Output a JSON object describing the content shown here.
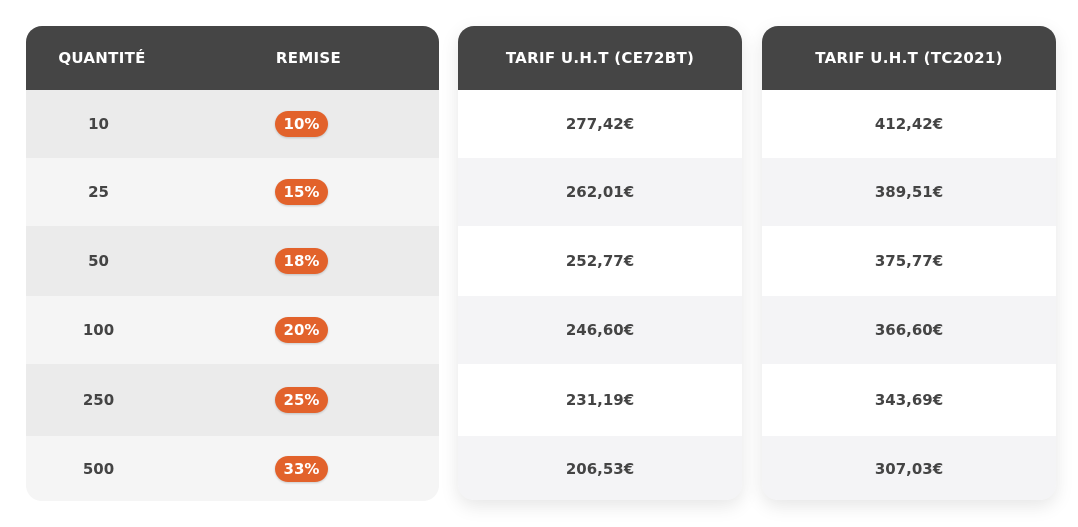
{
  "discount_table": {
    "headers": {
      "quantity": "QUANTITÉ",
      "discount": "REMISE"
    },
    "rows": [
      {
        "quantity": "10",
        "discount": "10%"
      },
      {
        "quantity": "25",
        "discount": "15%"
      },
      {
        "quantity": "50",
        "discount": "18%"
      },
      {
        "quantity": "100",
        "discount": "20%"
      },
      {
        "quantity": "250",
        "discount": "25%"
      },
      {
        "quantity": "500",
        "discount": "33%"
      }
    ],
    "badge_color": "#e2622b",
    "header_color": "#454545"
  },
  "price_ce72bt": {
    "header": "TARIF U.H.T (CE72BT)",
    "prices": [
      "277,42€",
      "262,01€",
      "252,77€",
      "246,60€",
      "231,19€",
      "206,53€"
    ]
  },
  "price_tc2021": {
    "header": "TARIF U.H.T (TC2021)",
    "prices": [
      "412,42€",
      "389,51€",
      "375,77€",
      "366,60€",
      "343,69€",
      "307,03€"
    ]
  }
}
